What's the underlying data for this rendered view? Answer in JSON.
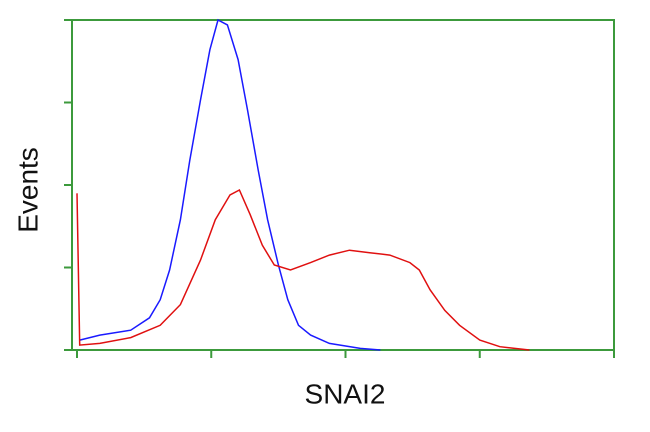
{
  "chart_data": {
    "type": "line",
    "x_label": "SNAI2",
    "y_label": "Events",
    "xlim": [
      0,
      4
    ],
    "ylim": [
      0,
      4
    ],
    "xticks": [
      0,
      1,
      2,
      3,
      4
    ],
    "yticks": [
      0,
      1,
      2,
      3,
      4
    ],
    "axis_color": "#3c9a3c",
    "series": [
      {
        "color": "#1a1aff",
        "x": [
          0.02,
          0.17,
          0.4,
          0.54,
          0.62,
          0.69,
          0.77,
          0.84,
          0.92,
          0.99,
          1.05,
          1.12,
          1.2,
          1.27,
          1.35,
          1.42,
          1.5,
          1.57,
          1.65,
          1.74,
          1.88,
          2.11,
          2.26
        ],
        "values": [
          0.12,
          0.18,
          0.24,
          0.39,
          0.61,
          0.97,
          1.58,
          2.3,
          3.03,
          3.64,
          4.0,
          3.94,
          3.52,
          2.91,
          2.18,
          1.58,
          1.03,
          0.61,
          0.3,
          0.18,
          0.08,
          0.02,
          0
        ]
      },
      {
        "color": "#e01010",
        "x": [
          0,
          0.02,
          0.17,
          0.4,
          0.62,
          0.77,
          0.92,
          1.03,
          1.14,
          1.21,
          1.29,
          1.38,
          1.47,
          1.59,
          1.74,
          1.88,
          2.03,
          2.18,
          2.33,
          2.48,
          2.55,
          2.63,
          2.74,
          2.85,
          3.0,
          3.15,
          3.37
        ],
        "values": [
          1.9,
          0.06,
          0.08,
          0.15,
          0.3,
          0.55,
          1.09,
          1.58,
          1.88,
          1.94,
          1.64,
          1.27,
          1.03,
          0.97,
          1.06,
          1.15,
          1.21,
          1.18,
          1.15,
          1.06,
          0.97,
          0.73,
          0.48,
          0.3,
          0.12,
          0.04,
          0
        ]
      }
    ]
  }
}
